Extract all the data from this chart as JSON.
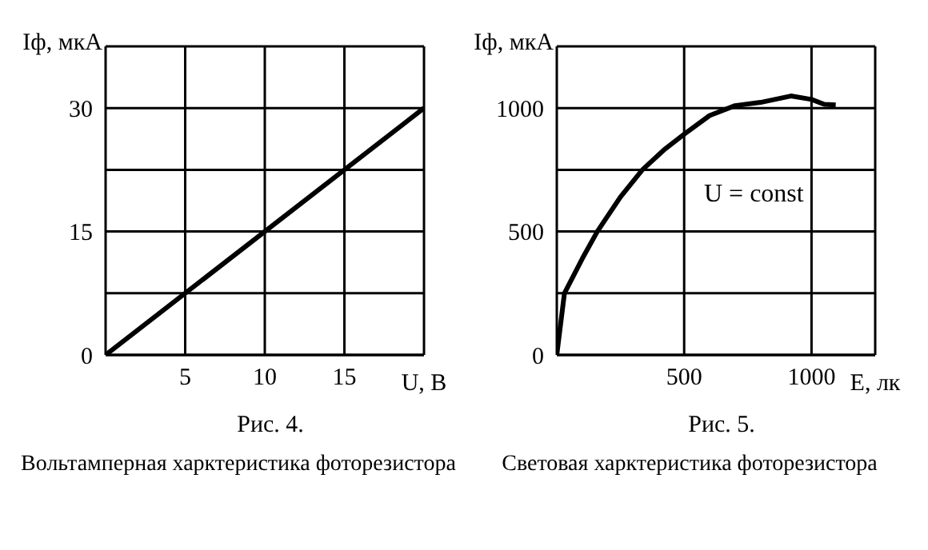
{
  "chart_data": [
    {
      "type": "line",
      "title": "Рис. 4.",
      "subtitle": "Вольтамперная харктеристика фоторезистора",
      "xlabel": "U, В",
      "ylabel": "Iф, мкА",
      "x": [
        0,
        20
      ],
      "series": [
        {
          "color": "#000000",
          "values": [
            0,
            30
          ]
        }
      ],
      "xlim": [
        0,
        20
      ],
      "xticks": [
        5,
        10,
        15
      ],
      "ylim": [
        0,
        37.5
      ],
      "yticks": [
        0,
        {
          "value": 7.5,
          "label": null
        },
        15,
        {
          "value": 22.5,
          "label": null
        },
        30
      ],
      "grid": true,
      "marker": "none",
      "line_style": "solid"
    },
    {
      "type": "line",
      "title": "Рис. 5.",
      "subtitle": "Световая харктеристика фоторезистора",
      "xlabel": "E, лк",
      "ylabel": "Iф, мкА",
      "annotations": [
        "U = const"
      ],
      "x": [
        0,
        30,
        100,
        159,
        250,
        336,
        420,
        500,
        600,
        700,
        800,
        919,
        1000,
        1050,
        1095
      ],
      "series": [
        {
          "color": "#000000",
          "values": [
            0,
            250,
            390,
            500,
            640,
            750,
            830,
            894,
            970,
            1010,
            1023,
            1049,
            1035,
            1015,
            1013
          ]
        }
      ],
      "xlim": [
        0,
        1250
      ],
      "xticks": [
        500,
        1000
      ],
      "ylim": [
        0,
        1250
      ],
      "yticks": [
        0,
        {
          "value": 250,
          "label": null
        },
        500,
        {
          "value": 750,
          "label": null
        },
        1000
      ],
      "grid": true,
      "marker": "none",
      "line_style": "solid"
    }
  ]
}
